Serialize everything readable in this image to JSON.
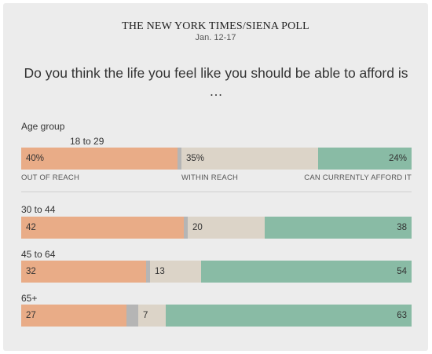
{
  "header": {
    "source": "THE NEW YORK TIMES/SIENA POLL",
    "date": "Jan. 12-17",
    "question": "Do you think the life you feel like you should be able to afford is …"
  },
  "colors": {
    "out_of_reach": "#e9ac87",
    "no_answer": "#b5b5b5",
    "within_reach": "#dcd4c8",
    "can_afford": "#89bba5"
  },
  "chart_data": {
    "type": "bar",
    "stacked": true,
    "orientation": "horizontal",
    "group_title": "Age group",
    "categories": [
      "18 to 29",
      "30 to 44",
      "45 to 64",
      "65+"
    ],
    "series": [
      {
        "name": "OUT OF REACH",
        "values": [
          40,
          42,
          32,
          27
        ],
        "labels": [
          "40%",
          "42",
          "32",
          "27"
        ]
      },
      {
        "name": "",
        "values": [
          1,
          1,
          1,
          3
        ]
      },
      {
        "name": "WITHIN REACH",
        "values": [
          35,
          20,
          13,
          7
        ],
        "labels": [
          "35%",
          "20",
          "13",
          "7"
        ]
      },
      {
        "name": "CAN CURRENTLY AFFORD IT",
        "values": [
          24,
          38,
          54,
          63
        ],
        "labels": [
          "24%",
          "38",
          "54",
          "63"
        ]
      }
    ]
  }
}
